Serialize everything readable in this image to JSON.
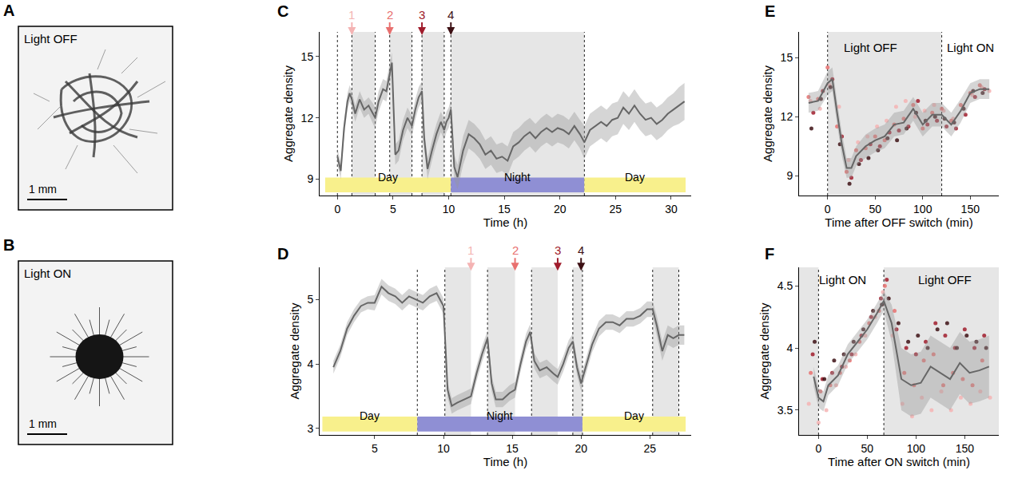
{
  "images": [
    {
      "panel": "A",
      "label": "Light OFF",
      "scale_bar": "1 mm"
    },
    {
      "panel": "B",
      "label": "Light ON",
      "scale_bar": "1 mm"
    }
  ],
  "chart_data": [
    {
      "panel": "C",
      "type": "line",
      "color": "#666666",
      "x_label": "Time (h)",
      "y_label": "Aggregate density",
      "xlim": [
        -1.6,
        31.8
      ],
      "ylim": [
        8.2,
        16.2
      ],
      "xticks": [
        0,
        5,
        10,
        15,
        20,
        25,
        30
      ],
      "yticks": [
        9,
        12,
        15
      ],
      "x": [
        0,
        0.3,
        0.6,
        0.9,
        1.1,
        1.3,
        1.6,
        2.0,
        2.4,
        2.8,
        3.2,
        3.4,
        3.7,
        4.1,
        4.4,
        4.7,
        4.9,
        5.2,
        5.5,
        5.9,
        6.3,
        6.7,
        7.0,
        7.3,
        7.6,
        7.8,
        8.1,
        8.5,
        8.9,
        9.3,
        9.6,
        9.8,
        10.0,
        10.2,
        10.5,
        10.8,
        11.3,
        11.8,
        12.3,
        12.8,
        13.3,
        13.8,
        14.3,
        14.8,
        15.3,
        15.8,
        16.3,
        16.8,
        17.3,
        17.8,
        18.3,
        18.8,
        19.3,
        19.8,
        20.3,
        20.8,
        21.3,
        21.8,
        22.2,
        22.7,
        23.2,
        23.7,
        24.2,
        24.7,
        25.2,
        25.7,
        26.2,
        26.7,
        27.2,
        27.7,
        28.2,
        28.7,
        29.2,
        29.7,
        30.2,
        30.7,
        31.2
      ],
      "values": [
        10.1,
        9.4,
        11.5,
        12.8,
        13.2,
        12.9,
        12.2,
        12.9,
        12.4,
        12.6,
        12.2,
        12.0,
        12.8,
        13.4,
        13.3,
        14.2,
        14.7,
        10.2,
        10.4,
        11.4,
        12.0,
        11.6,
        12.4,
        13.0,
        13.3,
        11.0,
        9.5,
        10.4,
        11.2,
        11.8,
        11.4,
        11.8,
        12.0,
        12.4,
        9.6,
        9.1,
        10.4,
        11.2,
        11.0,
        10.7,
        10.2,
        10.4,
        10.0,
        10.1,
        9.9,
        10.6,
        10.8,
        11.1,
        11.3,
        11.0,
        11.3,
        11.5,
        11.3,
        11.5,
        11.4,
        11.2,
        11.6,
        11.2,
        10.8,
        11.4,
        11.6,
        11.8,
        11.6,
        11.9,
        12.0,
        12.5,
        12.2,
        12.6,
        12.2,
        11.9,
        12.0,
        11.7,
        11.9,
        12.2,
        12.4,
        12.6,
        12.8
      ],
      "error": [
        0.4,
        0.4,
        0.4,
        0.4,
        0.4,
        0.4,
        0.4,
        0.4,
        0.4,
        0.4,
        0.5,
        0.5,
        0.5,
        0.5,
        0.5,
        0.5,
        0.5,
        0.5,
        0.5,
        0.5,
        0.5,
        0.5,
        0.5,
        0.5,
        0.5,
        0.5,
        0.5,
        0.5,
        0.5,
        0.5,
        0.5,
        0.5,
        0.5,
        0.5,
        0.6,
        0.6,
        0.7,
        0.7,
        0.7,
        0.7,
        0.7,
        0.7,
        0.7,
        0.7,
        0.7,
        0.7,
        0.7,
        0.7,
        0.7,
        0.7,
        0.7,
        0.7,
        0.7,
        0.7,
        0.7,
        0.7,
        0.7,
        0.7,
        0.8,
        0.8,
        0.8,
        0.8,
        0.8,
        0.8,
        0.8,
        0.8,
        0.8,
        0.8,
        0.8,
        0.8,
        0.8,
        0.8,
        0.8,
        0.8,
        0.8,
        0.9,
        0.9
      ],
      "shaded": [
        [
          1.3,
          3.4
        ],
        [
          4.7,
          6.7
        ],
        [
          7.6,
          9.6
        ],
        [
          10.2,
          22.2
        ]
      ],
      "vlines": [
        0,
        1.3,
        3.4,
        4.7,
        6.7,
        7.6,
        9.6,
        10.2,
        22.2
      ],
      "periods": [
        {
          "label": "Day",
          "start": -1.1,
          "end": 10.2,
          "color": "#f8f08c"
        },
        {
          "label": "Night",
          "start": 10.2,
          "end": 22.2,
          "color": "#8f8fd4"
        },
        {
          "label": "Day",
          "start": 22.2,
          "end": 31.3,
          "color": "#f8f08c"
        }
      ],
      "arrows": [
        {
          "label": "1",
          "x": 1.3,
          "color": "#f4b3b3"
        },
        {
          "label": "2",
          "x": 4.7,
          "color": "#e8706f"
        },
        {
          "label": "3",
          "x": 7.6,
          "color": "#a01c2c"
        },
        {
          "label": "4",
          "x": 10.2,
          "color": "#3d1014"
        }
      ]
    },
    {
      "panel": "D",
      "type": "line",
      "color": "#666666",
      "x_label": "Time (h)",
      "y_label": "Aggregate density",
      "xlim": [
        1,
        28
      ],
      "ylim": [
        2.9,
        5.5
      ],
      "xticks": [
        5,
        10,
        15,
        20,
        25
      ],
      "yticks": [
        3,
        4,
        5
      ],
      "x": [
        2.0,
        2.5,
        3.0,
        3.5,
        4.0,
        4.5,
        5.0,
        5.5,
        6.0,
        6.5,
        7.0,
        7.5,
        8.0,
        8.5,
        9.0,
        9.5,
        10.0,
        10.3,
        10.6,
        11.0,
        11.5,
        12.0,
        12.4,
        12.8,
        13.2,
        13.5,
        13.8,
        14.3,
        14.8,
        15.2,
        15.6,
        16.0,
        16.3,
        16.6,
        17.0,
        17.5,
        18.0,
        18.3,
        18.7,
        19.1,
        19.4,
        19.7,
        20.0,
        20.4,
        20.8,
        21.3,
        21.8,
        22.3,
        22.8,
        23.3,
        23.8,
        24.3,
        24.8,
        25.2,
        25.5,
        25.9,
        26.3,
        26.7,
        27.1,
        27.5
      ],
      "values": [
        3.95,
        4.2,
        4.55,
        4.75,
        4.9,
        4.95,
        4.95,
        5.2,
        5.1,
        5.05,
        4.95,
        5.05,
        5.0,
        4.95,
        5.05,
        5.1,
        4.9,
        3.6,
        3.35,
        3.4,
        3.45,
        3.5,
        3.85,
        4.15,
        4.4,
        3.7,
        3.45,
        3.45,
        3.55,
        3.6,
        4.0,
        4.35,
        4.5,
        4.05,
        3.9,
        3.95,
        3.85,
        3.8,
        4.0,
        4.25,
        4.35,
        3.95,
        3.7,
        4.0,
        4.3,
        4.55,
        4.65,
        4.65,
        4.6,
        4.7,
        4.7,
        4.75,
        4.85,
        4.85,
        4.6,
        4.2,
        4.45,
        4.4,
        4.45,
        4.45
      ],
      "error": [
        0.1,
        0.1,
        0.1,
        0.1,
        0.1,
        0.1,
        0.12,
        0.12,
        0.12,
        0.12,
        0.12,
        0.12,
        0.12,
        0.12,
        0.12,
        0.12,
        0.12,
        0.12,
        0.12,
        0.12,
        0.12,
        0.12,
        0.12,
        0.12,
        0.12,
        0.12,
        0.12,
        0.12,
        0.12,
        0.12,
        0.12,
        0.12,
        0.12,
        0.12,
        0.12,
        0.12,
        0.12,
        0.12,
        0.12,
        0.12,
        0.12,
        0.12,
        0.12,
        0.12,
        0.12,
        0.12,
        0.12,
        0.12,
        0.12,
        0.12,
        0.12,
        0.12,
        0.12,
        0.12,
        0.15,
        0.15,
        0.15,
        0.15,
        0.15,
        0.15
      ],
      "shaded": [
        [
          10.1,
          12.0
        ],
        [
          13.2,
          15.2
        ],
        [
          16.4,
          18.3
        ],
        [
          19.4,
          20.1
        ],
        [
          25.2,
          27.1
        ]
      ],
      "vlines": [
        8.1,
        10.1,
        13.2,
        16.4,
        19.4,
        20.1,
        25.2,
        27.1
      ],
      "periods": [
        {
          "label": "Day",
          "start": 1.2,
          "end": 8.1,
          "color": "#f8f08c"
        },
        {
          "label": "Night",
          "start": 8.1,
          "end": 20.1,
          "color": "#8f8fd4"
        },
        {
          "label": "Day",
          "start": 20.1,
          "end": 27.6,
          "color": "#f8f08c"
        }
      ],
      "arrows": [
        {
          "label": "1",
          "x": 12.0,
          "color": "#f4b3b3"
        },
        {
          "label": "2",
          "x": 15.2,
          "color": "#e8706f"
        },
        {
          "label": "3",
          "x": 18.3,
          "color": "#a01c2c"
        },
        {
          "label": "4",
          "x": 20.0,
          "color": "#3d1014"
        }
      ]
    },
    {
      "panel": "E",
      "type": "line",
      "color": "#666666",
      "x_label": "Time after OFF switch (min)",
      "y_label": "Aggregate density",
      "xlim": [
        -30,
        180
      ],
      "ylim": [
        8.0,
        16.3
      ],
      "xticks": [
        0,
        50,
        100,
        150
      ],
      "yticks": [
        9,
        12,
        15
      ],
      "x": [
        -20,
        -10,
        0,
        5,
        10,
        15,
        20,
        25,
        30,
        40,
        50,
        60,
        70,
        80,
        90,
        100,
        110,
        120,
        130,
        140,
        150,
        160,
        170
      ],
      "values": [
        12.7,
        12.8,
        13.7,
        13.9,
        12.2,
        10.6,
        9.4,
        9.4,
        10.0,
        10.5,
        10.8,
        11.0,
        11.6,
        11.7,
        12.4,
        11.6,
        12.1,
        12.1,
        11.6,
        12.3,
        13.2,
        13.4,
        13.4
      ],
      "error": [
        0.5,
        0.5,
        0.6,
        0.6,
        0.6,
        0.6,
        0.5,
        0.5,
        0.5,
        0.6,
        0.6,
        0.6,
        0.6,
        0.6,
        0.6,
        0.6,
        0.6,
        0.6,
        0.6,
        0.6,
        0.5,
        0.5,
        0.5
      ],
      "series": [
        {
          "type": "scatter",
          "color": "#f4b3b3",
          "x": [
            -18,
            -8,
            2,
            12,
            22,
            32,
            42,
            52,
            62,
            72,
            82,
            92,
            102,
            112,
            122,
            132,
            142,
            152,
            162,
            170
          ],
          "values": [
            12.8,
            12.4,
            13.6,
            12.5,
            9.8,
            10.7,
            11.0,
            11.5,
            11.8,
            12.5,
            12.8,
            12.0,
            12.3,
            12.6,
            12.3,
            11.9,
            12.5,
            13.1,
            13.5,
            13.3
          ]
        },
        {
          "type": "scatter",
          "color": "#e8706f",
          "x": [
            -20,
            -10,
            0,
            10,
            20,
            30,
            40,
            50,
            60,
            70,
            80,
            90,
            100,
            110,
            120,
            130,
            140,
            150,
            160
          ],
          "values": [
            13.0,
            12.9,
            14.5,
            11.5,
            9.2,
            10.3,
            10.4,
            11.0,
            10.8,
            11.6,
            11.9,
            12.6,
            11.4,
            12.2,
            12.4,
            11.8,
            12.6,
            13.2,
            13.6
          ]
        },
        {
          "type": "scatter",
          "color": "#a01c2c",
          "x": [
            -15,
            -5,
            5,
            15,
            25,
            35,
            45,
            55,
            65,
            75,
            85,
            95,
            105,
            115,
            125,
            135,
            145,
            155,
            165
          ],
          "values": [
            12.2,
            13.3,
            13.9,
            11.0,
            8.9,
            9.8,
            10.6,
            10.5,
            11.2,
            11.3,
            11.5,
            12.8,
            11.6,
            11.8,
            11.5,
            11.4,
            12.1,
            13.0,
            13.4
          ]
        },
        {
          "type": "scatter",
          "color": "#3d1014",
          "x": [
            -17,
            -7,
            3,
            13,
            23,
            33,
            43,
            53,
            63,
            73,
            83,
            93,
            103,
            113,
            123,
            133,
            143,
            153,
            163
          ],
          "values": [
            11.4,
            12.9,
            13.5,
            10.6,
            8.6,
            9.6,
            9.9,
            10.3,
            10.9,
            10.8,
            11.4,
            12.2,
            11.8,
            12.0,
            11.9,
            11.7,
            12.4,
            13.3,
            13.2
          ]
        }
      ],
      "shaded": [
        [
          0,
          120
        ]
      ],
      "vlines": [
        0,
        120
      ],
      "regions": [
        {
          "text": "Light OFF",
          "x": 45,
          "y": 15.5
        },
        {
          "text": "Light ON",
          "x": 150,
          "y": 15.5
        }
      ]
    },
    {
      "panel": "F",
      "type": "line",
      "color": "#666666",
      "x_label": "Time after ON switch (min)",
      "y_label": "Aggregate density",
      "xlim": [
        -20,
        185
      ],
      "ylim": [
        3.3,
        4.65
      ],
      "xticks": [
        0,
        50,
        100,
        150
      ],
      "yticks": [
        3.5,
        4,
        4.5
      ],
      "x": [
        -5,
        0,
        5,
        10,
        20,
        30,
        40,
        50,
        60,
        67,
        75,
        85,
        95,
        105,
        115,
        125,
        135,
        145,
        155,
        165,
        175
      ],
      "values": [
        3.77,
        3.6,
        3.57,
        3.7,
        3.78,
        3.95,
        4.05,
        4.15,
        4.28,
        4.38,
        4.2,
        3.75,
        3.7,
        3.72,
        3.85,
        3.8,
        3.75,
        3.88,
        3.8,
        3.82,
        3.85
      ],
      "error": [
        0.08,
        0.08,
        0.08,
        0.08,
        0.08,
        0.08,
        0.08,
        0.08,
        0.08,
        0.08,
        0.15,
        0.25,
        0.25,
        0.25,
        0.25,
        0.25,
        0.25,
        0.25,
        0.25,
        0.25,
        0.25
      ],
      "series": [
        {
          "type": "scatter",
          "color": "#f4b3b3",
          "x": [
            -10,
            0,
            8,
            18,
            28,
            38,
            48,
            58,
            66,
            76,
            86,
            96,
            106,
            116,
            126,
            136,
            146,
            156,
            166,
            176
          ],
          "values": [
            3.55,
            3.4,
            3.5,
            3.7,
            3.85,
            3.95,
            4.1,
            4.25,
            4.45,
            4.1,
            3.55,
            3.45,
            3.6,
            3.5,
            3.65,
            3.5,
            3.6,
            3.55,
            3.65,
            3.6
          ]
        },
        {
          "type": "scatter",
          "color": "#e8706f",
          "x": [
            -8,
            2,
            12,
            22,
            32,
            42,
            52,
            62,
            68,
            78,
            88,
            98,
            108,
            118,
            128,
            138,
            148,
            158,
            168
          ],
          "values": [
            3.8,
            3.65,
            3.7,
            3.8,
            3.9,
            4.05,
            4.2,
            4.3,
            4.5,
            4.3,
            3.8,
            3.7,
            3.9,
            3.95,
            3.7,
            3.8,
            3.75,
            3.7,
            3.9
          ]
        },
        {
          "type": "scatter",
          "color": "#a01c2c",
          "x": [
            -6,
            4,
            14,
            24,
            34,
            44,
            54,
            64,
            70,
            80,
            90,
            100,
            110,
            120,
            130,
            140,
            150,
            160,
            170
          ],
          "values": [
            3.95,
            3.75,
            3.8,
            3.85,
            3.95,
            4.1,
            4.25,
            4.4,
            4.55,
            4.15,
            4.0,
            3.95,
            4.05,
            4.2,
            4.1,
            4.0,
            4.15,
            4.0,
            4.1
          ]
        },
        {
          "type": "scatter",
          "color": "#3d1014",
          "x": [
            -4,
            6,
            16,
            26,
            36,
            46,
            56,
            65,
            72,
            82,
            92,
            102,
            112,
            122,
            132,
            142,
            152,
            162,
            172
          ],
          "values": [
            4.05,
            3.75,
            3.9,
            3.95,
            4.05,
            4.15,
            4.3,
            4.35,
            4.4,
            4.2,
            4.05,
            4.1,
            4.0,
            4.15,
            4.2,
            4.0,
            4.1,
            4.05,
            4.0
          ]
        }
      ],
      "shaded": [
        [
          -20,
          0
        ],
        [
          67,
          185
        ]
      ],
      "vlines": [
        0,
        67
      ],
      "regions": [
        {
          "text": "Light ON",
          "x": 25,
          "y": 4.55
        },
        {
          "text": "Light OFF",
          "x": 130,
          "y": 4.55
        }
      ]
    }
  ]
}
